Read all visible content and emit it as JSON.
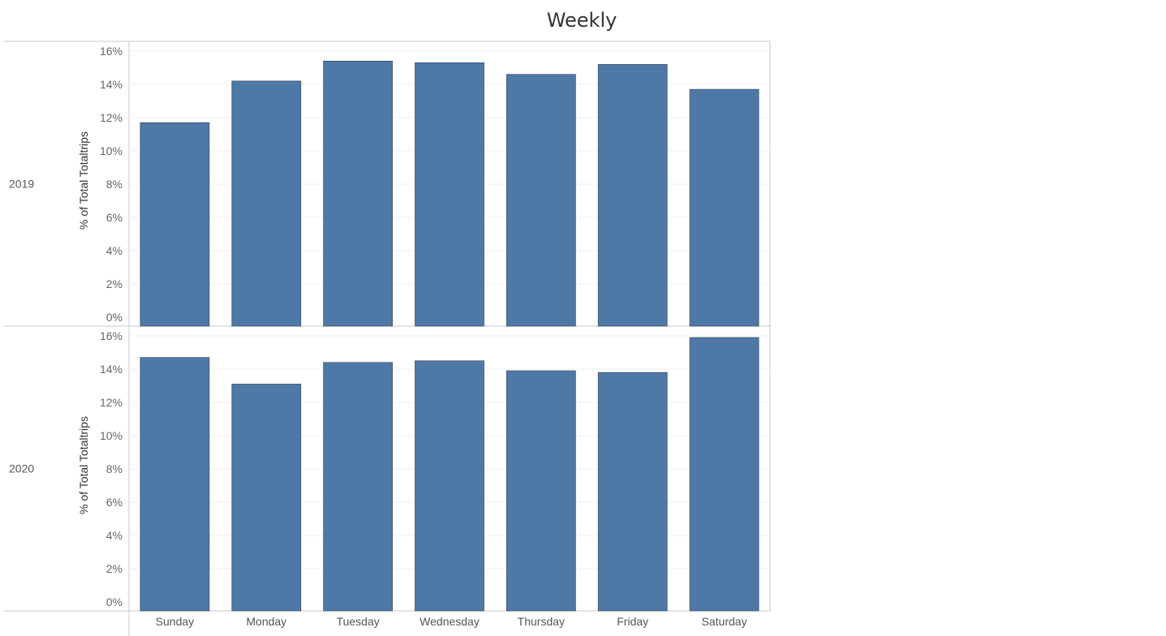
{
  "chart_data": {
    "type": "bar",
    "title": "Weekly",
    "categories": [
      "Sunday",
      "Monday",
      "Tuesday",
      "Wednesday",
      "Thursday",
      "Friday",
      "Saturday"
    ],
    "ylabel": "% of Total Totaltrips",
    "xlabel": "",
    "ylim": [
      0,
      16
    ],
    "yticks": [
      "0%",
      "2%",
      "4%",
      "6%",
      "8%",
      "10%",
      "12%",
      "14%",
      "16%"
    ],
    "grid": true,
    "bar_color": "#4e79a7",
    "panels": [
      {
        "row_label": "2019",
        "values": [
          11.7,
          14.2,
          15.4,
          15.3,
          14.6,
          15.2,
          13.7
        ]
      },
      {
        "row_label": "2020",
        "values": [
          14.7,
          13.1,
          14.4,
          14.5,
          13.9,
          13.8,
          15.9
        ]
      }
    ]
  }
}
